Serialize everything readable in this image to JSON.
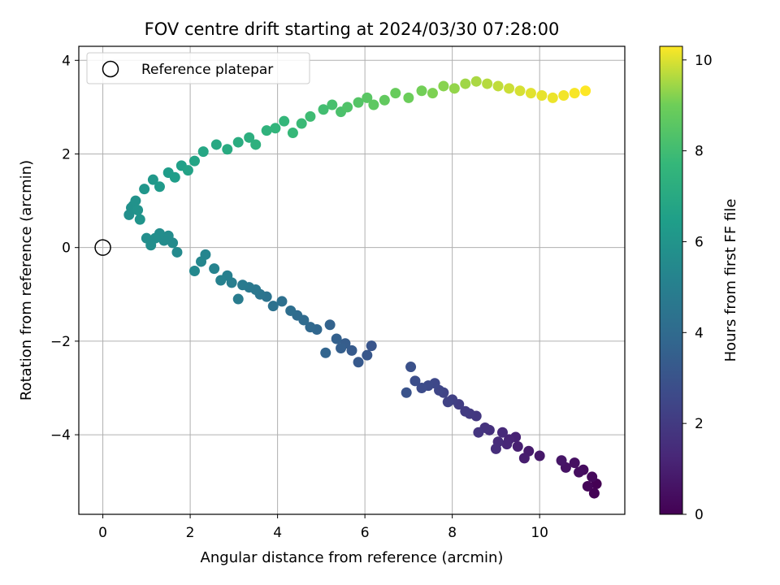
{
  "chart_data": {
    "type": "scatter",
    "title": "FOV centre drift starting at 2024/03/30 07:28:00",
    "xlabel": "Angular distance from reference (arcmin)",
    "ylabel": "Rotation from reference (arcmin)",
    "xlim": [
      -0.55,
      11.95
    ],
    "ylim": [
      -5.7,
      4.3
    ],
    "xticks": [
      0,
      2,
      4,
      6,
      8,
      10
    ],
    "yticks": [
      -4,
      -2,
      0,
      2,
      4
    ],
    "xtick_labels": [
      "0",
      "2",
      "4",
      "6",
      "8",
      "10"
    ],
    "ytick_labels": [
      "−4",
      "−2",
      "0",
      "2",
      "4"
    ],
    "grid": true,
    "legend": {
      "position": "top-left",
      "label": "Reference platepar"
    },
    "reference_point": {
      "x": 0,
      "y": 0
    },
    "colorbar": {
      "label": "Hours from first FF file",
      "min": 0,
      "max": 10.3,
      "ticks": [
        0,
        2,
        4,
        6,
        8,
        10
      ],
      "tick_labels": [
        "0",
        "2",
        "4",
        "6",
        "8",
        "10"
      ],
      "colormap": "viridis"
    },
    "series": [
      {
        "x": [
          11.3,
          11.25,
          11.1,
          11.2,
          11.0,
          10.9,
          10.8,
          10.6,
          10.5,
          10.0,
          9.75,
          9.65,
          9.5,
          9.45,
          9.3,
          9.25,
          9.15,
          9.05,
          9.0,
          8.85,
          8.75,
          8.6,
          8.55,
          8.4,
          8.3,
          8.15,
          8.0,
          7.9,
          7.8,
          7.7,
          7.6,
          7.45,
          7.3,
          7.15,
          7.05,
          6.95,
          6.15,
          6.05,
          5.85,
          5.7,
          5.55,
          5.45,
          5.35,
          5.2,
          5.1,
          4.9,
          4.75,
          4.6,
          4.45,
          4.3,
          4.1,
          3.9,
          3.75,
          3.6,
          3.5,
          3.35,
          3.2,
          3.1,
          2.95,
          2.85,
          2.7,
          2.55,
          2.35,
          2.25,
          2.1,
          1.7,
          1.6,
          1.5,
          1.4,
          1.3,
          1.2,
          1.1,
          1.0,
          0.6,
          0.65,
          0.7,
          0.75,
          0.8,
          0.85,
          0.95,
          1.15,
          1.3,
          1.5,
          1.65,
          1.8,
          1.95,
          2.1,
          2.3,
          2.6,
          2.85,
          3.1,
          3.35,
          3.5,
          3.75,
          3.95,
          4.15,
          4.35,
          4.55,
          4.75,
          5.05,
          5.25,
          5.45,
          5.6,
          5.85,
          6.05,
          6.2,
          6.45,
          6.7,
          7.0,
          7.3,
          7.55,
          7.8,
          8.05,
          8.3,
          8.55,
          8.8,
          9.05,
          9.3,
          9.55,
          9.8,
          10.05,
          10.3,
          10.55,
          10.8,
          11.05
        ],
        "y": [
          -5.05,
          -5.25,
          -5.1,
          -4.9,
          -4.75,
          -4.8,
          -4.6,
          -4.7,
          -4.55,
          -4.45,
          -4.35,
          -4.5,
          -4.25,
          -4.05,
          -4.1,
          -4.2,
          -3.95,
          -4.15,
          -4.3,
          -3.9,
          -3.85,
          -3.95,
          -3.6,
          -3.55,
          -3.5,
          -3.35,
          -3.25,
          -3.3,
          -3.1,
          -3.05,
          -2.9,
          -2.95,
          -3.0,
          -2.85,
          -2.55,
          -3.1,
          -2.1,
          -2.3,
          -2.45,
          -2.2,
          -2.05,
          -2.15,
          -1.95,
          -1.65,
          -2.25,
          -1.75,
          -1.7,
          -1.55,
          -1.45,
          -1.35,
          -1.15,
          -1.25,
          -1.05,
          -1.0,
          -0.9,
          -0.85,
          -0.8,
          -1.1,
          -0.75,
          -0.6,
          -0.7,
          -0.45,
          -0.15,
          -0.3,
          -0.5,
          -0.1,
          0.1,
          0.25,
          0.15,
          0.3,
          0.2,
          0.05,
          0.2,
          0.7,
          0.85,
          0.9,
          1.0,
          0.8,
          0.6,
          1.25,
          1.45,
          1.3,
          1.6,
          1.5,
          1.75,
          1.65,
          1.85,
          2.05,
          2.2,
          2.1,
          2.25,
          2.35,
          2.2,
          2.5,
          2.55,
          2.7,
          2.45,
          2.65,
          2.8,
          2.95,
          3.05,
          2.9,
          3.0,
          3.1,
          3.2,
          3.05,
          3.15,
          3.3,
          3.2,
          3.35,
          3.3,
          3.45,
          3.4,
          3.5,
          3.55,
          3.5,
          3.45,
          3.4,
          3.35,
          3.3,
          3.25,
          3.2,
          3.25,
          3.3,
          3.35
        ],
        "hours": [
          0.0,
          0.08,
          0.17,
          0.25,
          0.34,
          0.42,
          0.51,
          0.59,
          0.68,
          0.76,
          0.85,
          0.93,
          1.02,
          1.1,
          1.19,
          1.27,
          1.36,
          1.44,
          1.53,
          1.61,
          1.7,
          1.78,
          1.87,
          1.95,
          2.04,
          2.12,
          2.21,
          2.29,
          2.38,
          2.46,
          2.55,
          2.63,
          2.72,
          2.8,
          2.89,
          2.97,
          3.06,
          3.14,
          3.23,
          3.31,
          3.4,
          3.48,
          3.57,
          3.65,
          3.74,
          3.82,
          3.91,
          3.99,
          4.08,
          4.16,
          4.25,
          4.33,
          4.42,
          4.5,
          4.59,
          4.67,
          4.76,
          4.84,
          4.93,
          5.01,
          5.1,
          5.18,
          5.27,
          5.35,
          5.44,
          5.52,
          5.55,
          5.6,
          5.62,
          5.65,
          5.68,
          5.7,
          5.72,
          5.75,
          5.8,
          5.85,
          5.9,
          5.95,
          6.0,
          6.05,
          6.15,
          6.25,
          6.35,
          6.45,
          6.55,
          6.65,
          6.75,
          6.85,
          6.95,
          7.05,
          7.15,
          7.25,
          7.35,
          7.45,
          7.55,
          7.65,
          7.75,
          7.85,
          7.95,
          8.05,
          8.15,
          8.25,
          8.35,
          8.45,
          8.55,
          8.65,
          8.75,
          8.85,
          8.95,
          9.05,
          9.15,
          9.25,
          9.35,
          9.45,
          9.55,
          9.65,
          9.75,
          9.85,
          9.95,
          10.05,
          10.1,
          10.15,
          10.2,
          10.25,
          10.3
        ]
      }
    ]
  }
}
